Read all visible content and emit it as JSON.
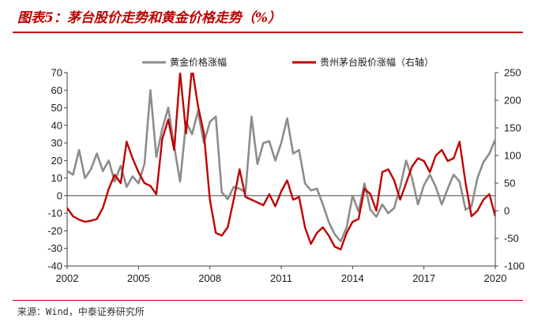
{
  "header": {
    "title": "图表5：茅台股价走势和黄金价格走势（%）"
  },
  "footer": {
    "source": "来源：Wind，中泰证券研究所"
  },
  "colors": {
    "gold": "#8c8c8c",
    "moutai": "#c00000",
    "axis": "#404040",
    "accent": "#c00000"
  },
  "chart_data": {
    "type": "line",
    "title": "茅台股价走势和黄金价格走势（%）",
    "x_ticks": [
      "2002",
      "2005",
      "2008",
      "2011",
      "2014",
      "2017",
      "2020"
    ],
    "xlim": [
      2002,
      2020
    ],
    "left_axis": {
      "ylim": [
        -40,
        70
      ],
      "ticks": [
        "70",
        "60",
        "50",
        "40",
        "30",
        "20",
        "10",
        "0",
        "-10",
        "-20",
        "-30",
        "-40"
      ]
    },
    "right_axis": {
      "ylim": [
        -100,
        250
      ],
      "ticks": [
        "250",
        "200",
        "150",
        "100",
        "50",
        "0",
        "-50",
        "-100"
      ]
    },
    "series": [
      {
        "name": "黄金价格涨幅",
        "axis": "left",
        "color": "#8c8c8c",
        "x": [
          2002.0,
          2002.25,
          2002.5,
          2002.75,
          2003.0,
          2003.25,
          2003.5,
          2003.75,
          2004.0,
          2004.25,
          2004.5,
          2004.75,
          2005.0,
          2005.25,
          2005.5,
          2005.75,
          2006.0,
          2006.25,
          2006.5,
          2006.75,
          2007.0,
          2007.25,
          2007.5,
          2007.75,
          2008.0,
          2008.25,
          2008.5,
          2008.75,
          2009.0,
          2009.25,
          2009.5,
          2009.75,
          2010.0,
          2010.25,
          2010.5,
          2010.75,
          2011.0,
          2011.25,
          2011.5,
          2011.75,
          2012.0,
          2012.25,
          2012.5,
          2012.75,
          2013.0,
          2013.25,
          2013.5,
          2013.75,
          2014.0,
          2014.25,
          2014.5,
          2014.75,
          2015.0,
          2015.25,
          2015.5,
          2015.75,
          2016.0,
          2016.25,
          2016.5,
          2016.75,
          2017.0,
          2017.25,
          2017.5,
          2017.75,
          2018.0,
          2018.25,
          2018.5,
          2018.75,
          2019.0,
          2019.25,
          2019.5,
          2019.75,
          2020.0
        ],
        "y": [
          14,
          12,
          26,
          10,
          15,
          24,
          14,
          20,
          8,
          17,
          5,
          11,
          7,
          18,
          60,
          22,
          38,
          50,
          28,
          8,
          42,
          35,
          48,
          30,
          42,
          45,
          2,
          -2,
          5,
          4,
          2,
          45,
          18,
          30,
          31,
          20,
          30,
          44,
          24,
          26,
          7,
          3,
          4,
          -5,
          -15,
          -22,
          -26,
          -18,
          0,
          -9,
          7,
          -8,
          -12,
          -5,
          -10,
          -7,
          5,
          20,
          10,
          -5,
          6,
          12,
          5,
          -5,
          4,
          12,
          8,
          -8,
          -6,
          10,
          19,
          24,
          32
        ]
      },
      {
        "name": "贵州茅台股价涨幅（右轴）",
        "axis": "right",
        "color": "#c00000",
        "x": [
          2002.0,
          2002.25,
          2002.5,
          2002.75,
          2003.0,
          2003.25,
          2003.5,
          2003.75,
          2004.0,
          2004.25,
          2004.5,
          2004.75,
          2005.0,
          2005.25,
          2005.5,
          2005.75,
          2006.0,
          2006.25,
          2006.5,
          2006.75,
          2007.0,
          2007.25,
          2007.5,
          2007.75,
          2008.0,
          2008.25,
          2008.5,
          2008.75,
          2009.0,
          2009.25,
          2009.5,
          2009.75,
          2010.0,
          2010.25,
          2010.5,
          2010.75,
          2011.0,
          2011.25,
          2011.5,
          2011.75,
          2012.0,
          2012.25,
          2012.5,
          2012.75,
          2013.0,
          2013.25,
          2013.5,
          2013.75,
          2014.0,
          2014.25,
          2014.5,
          2014.75,
          2015.0,
          2015.25,
          2015.5,
          2015.75,
          2016.0,
          2016.25,
          2016.5,
          2016.75,
          2017.0,
          2017.25,
          2017.5,
          2017.75,
          2018.0,
          2018.25,
          2018.5,
          2018.75,
          2019.0,
          2019.25,
          2019.5,
          2019.75,
          2020.0
        ],
        "y": [
          5,
          -10,
          -16,
          -20,
          -18,
          -15,
          5,
          40,
          65,
          50,
          125,
          95,
          70,
          50,
          45,
          30,
          130,
          165,
          110,
          250,
          140,
          260,
          190,
          140,
          20,
          -40,
          -45,
          -30,
          20,
          75,
          25,
          20,
          15,
          10,
          30,
          8,
          35,
          55,
          20,
          25,
          -30,
          -60,
          -40,
          -30,
          -45,
          -65,
          -70,
          -40,
          -20,
          -15,
          40,
          30,
          0,
          70,
          75,
          55,
          20,
          50,
          80,
          95,
          90,
          70,
          100,
          110,
          90,
          95,
          125,
          50,
          -10,
          0,
          20,
          30,
          -10
        ]
      }
    ]
  }
}
